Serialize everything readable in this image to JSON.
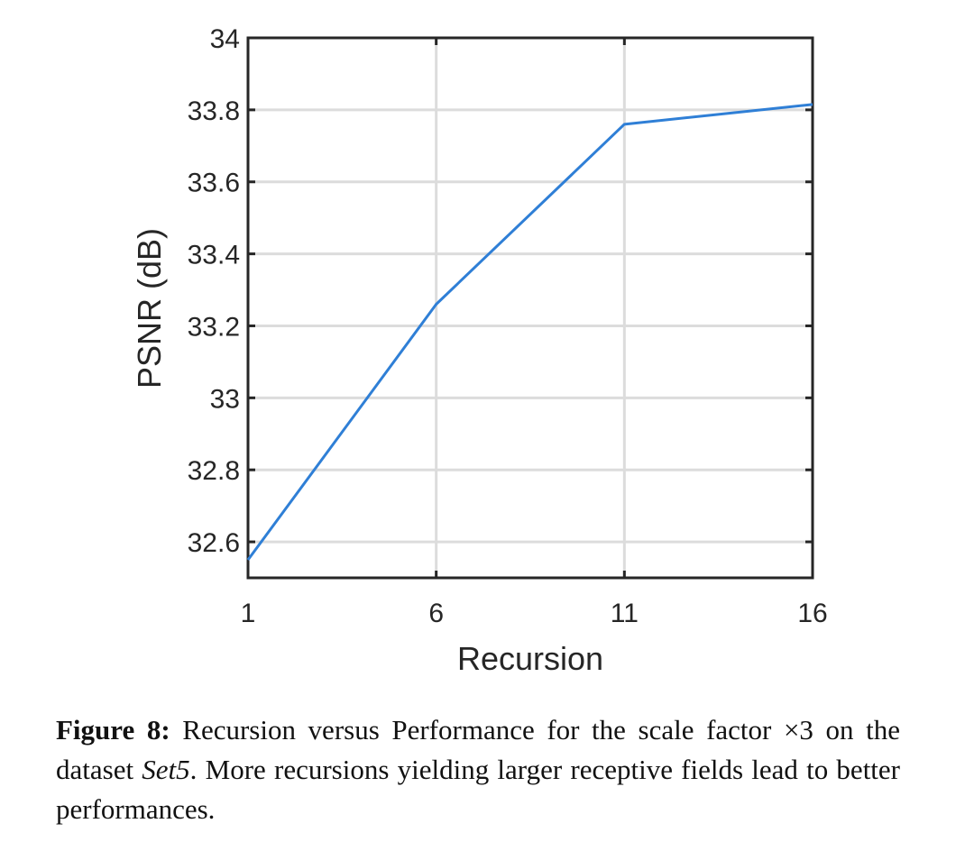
{
  "chart_data": {
    "type": "line",
    "title": "",
    "xlabel": "Recursion",
    "ylabel": "PSNR (dB)",
    "x": [
      1,
      6,
      11,
      16
    ],
    "series": [
      {
        "values": [
          32.55,
          33.26,
          33.76,
          33.815
        ],
        "color": "#2f7fd6"
      }
    ],
    "xlim": [
      1,
      16
    ],
    "ylim": [
      32.5,
      34
    ],
    "xticks": [
      1,
      6,
      11,
      16
    ],
    "xtick_labels": [
      "1",
      "6",
      "11",
      "16"
    ],
    "yticks": [
      32.6,
      32.8,
      33,
      33.2,
      33.4,
      33.6,
      33.8,
      34
    ],
    "ytick_labels": [
      "32.6",
      "32.8",
      "33",
      "33.2",
      "33.4",
      "33.6",
      "33.8",
      "34"
    ],
    "grid": true,
    "legend": "none"
  },
  "caption": {
    "label": "Figure 8:",
    "text_before": " Recursion versus Performance for the scale factor ×3 on the dataset ",
    "dataset": "Set5",
    "text_after": ".  More recursions yielding larger receptive fields lead to better performances."
  }
}
